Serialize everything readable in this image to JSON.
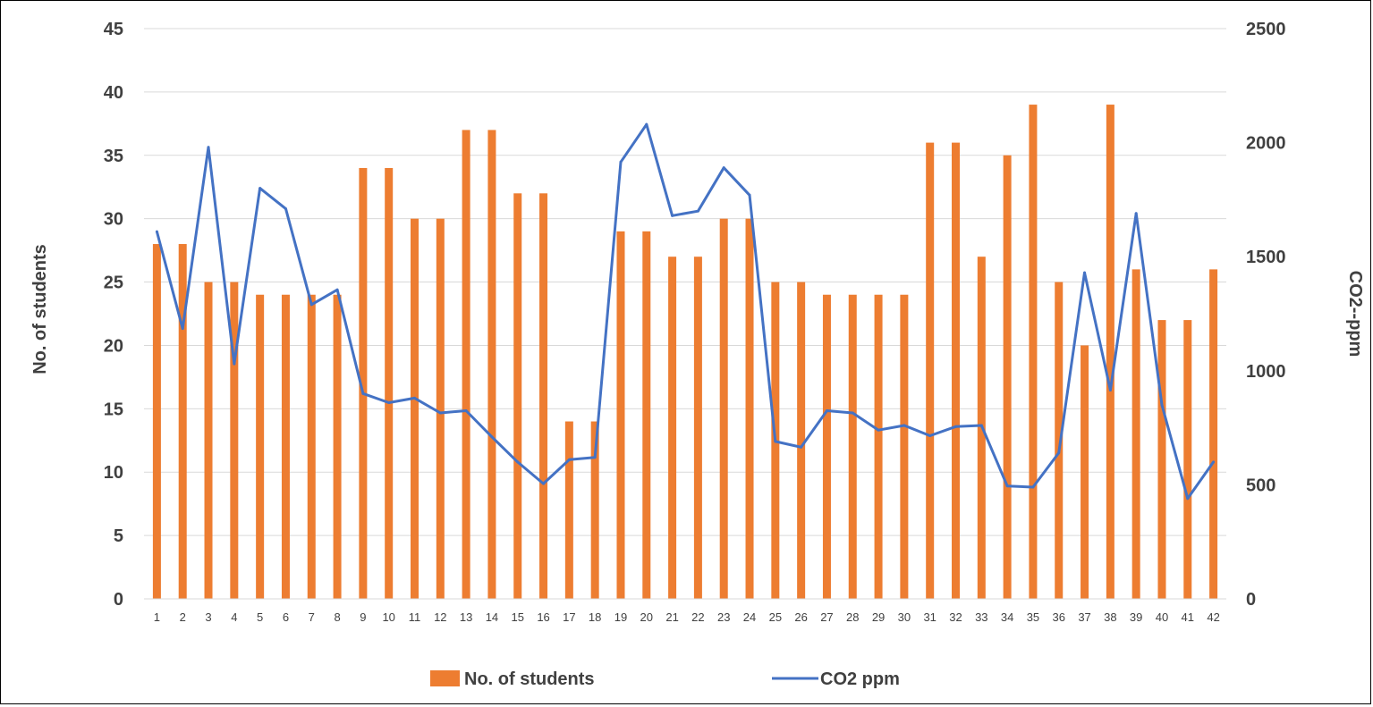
{
  "chart_data": {
    "type": "bar",
    "categories": [
      "1",
      "2",
      "3",
      "4",
      "5",
      "6",
      "7",
      "8",
      "9",
      "10",
      "11",
      "12",
      "13",
      "14",
      "15",
      "16",
      "17",
      "18",
      "19",
      "20",
      "21",
      "22",
      "23",
      "24",
      "25",
      "26",
      "27",
      "28",
      "29",
      "30",
      "31",
      "32",
      "33",
      "34",
      "35",
      "36",
      "37",
      "38",
      "39",
      "40",
      "41",
      "42"
    ],
    "series": [
      {
        "name": "No. of students",
        "type": "bar",
        "axis": "left",
        "color": "#ED7D31",
        "values": [
          28,
          28,
          25,
          25,
          24,
          24,
          24,
          24,
          34,
          34,
          30,
          30,
          37,
          37,
          32,
          32,
          14,
          14,
          29,
          29,
          27,
          27,
          30,
          30,
          25,
          25,
          24,
          24,
          24,
          24,
          36,
          36,
          27,
          35,
          39,
          25,
          20,
          39,
          26,
          22,
          22,
          26
        ]
      },
      {
        "name": "CO2 ppm",
        "type": "line",
        "axis": "right",
        "color": "#4472C4",
        "values": [
          1610,
          1185,
          1980,
          1030,
          1800,
          1710,
          1290,
          1355,
          900,
          860,
          880,
          815,
          825,
          710,
          600,
          505,
          610,
          620,
          1915,
          2080,
          1680,
          1700,
          1890,
          1770,
          690,
          665,
          825,
          815,
          740,
          760,
          715,
          755,
          760,
          495,
          490,
          640,
          1430,
          915,
          1690,
          850,
          440,
          600
        ]
      }
    ],
    "y_left": {
      "label": "No. of students",
      "min": 0,
      "max": 45,
      "step": 5
    },
    "y_right": {
      "label": "CO2--ppm",
      "min": 0,
      "max": 2500,
      "step": 500
    },
    "title": "",
    "xlabel": "",
    "grid": true,
    "legend_position": "bottom"
  }
}
